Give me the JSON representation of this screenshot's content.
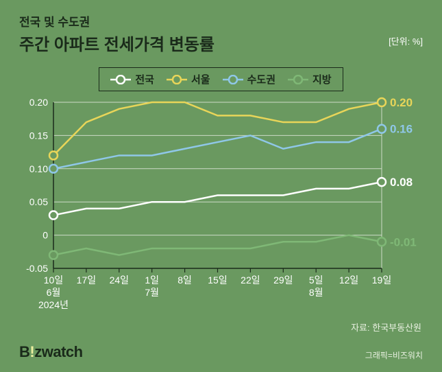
{
  "header": {
    "pretitle": "전국 및 수도권",
    "title": "주간 아파트 전세가격 변동률",
    "unit": "[단위: %]"
  },
  "chart": {
    "type": "line",
    "background_color": "#6a9960",
    "grid_color": "#cddac7",
    "axis_color": "#1a2a1a",
    "font_color_ticks": "#ffffff",
    "font_color_end": "#ffffff",
    "ylim": [
      -0.05,
      0.2
    ],
    "ytick_step": 0.05,
    "yticks": [
      "0.20",
      "0.15",
      "0.10",
      "0.05",
      "0",
      "-0.05"
    ],
    "xticks": [
      "10일",
      "17일",
      "24일",
      "1일",
      "8일",
      "15일",
      "22일",
      "29일",
      "5일",
      "12일",
      "19일"
    ],
    "xtick_sub": {
      "0": "6월",
      "3": "7월",
      "8": "8월"
    },
    "xtick_sub2": {
      "0": "2024년"
    },
    "line_width": 2.5,
    "marker_radius": 6,
    "marker_stroke": 2.5,
    "marker_fill": "#6a9960",
    "title_fontsize": 24,
    "tick_fontsize": 14,
    "endlabel_fontsize": 17,
    "series": [
      {
        "name": "전국",
        "color": "#ffffff",
        "values": [
          0.03,
          0.04,
          0.04,
          0.05,
          0.05,
          0.06,
          0.06,
          0.06,
          0.07,
          0.07,
          0.08
        ],
        "end_label": "0.08"
      },
      {
        "name": "서울",
        "color": "#e8d559",
        "values": [
          0.12,
          0.17,
          0.19,
          0.2,
          0.2,
          0.18,
          0.18,
          0.17,
          0.17,
          0.19,
          0.2
        ],
        "end_label": "0.20"
      },
      {
        "name": "수도권",
        "color": "#8fc7e8",
        "values": [
          0.1,
          0.11,
          0.12,
          0.12,
          0.13,
          0.14,
          0.15,
          0.13,
          0.14,
          0.14,
          0.16
        ],
        "end_label": "0.16"
      },
      {
        "name": "지방",
        "color": "#7fb876",
        "values": [
          -0.03,
          -0.02,
          -0.03,
          -0.02,
          -0.02,
          -0.02,
          -0.02,
          -0.01,
          -0.01,
          0.0,
          -0.01
        ],
        "end_label": "-0.01"
      }
    ]
  },
  "source": "자료: 한국부동산원",
  "logo": {
    "pre": "B",
    "excl": "!",
    "post": "z",
    "rest": "watch"
  },
  "credit": "그래픽=비즈워치"
}
